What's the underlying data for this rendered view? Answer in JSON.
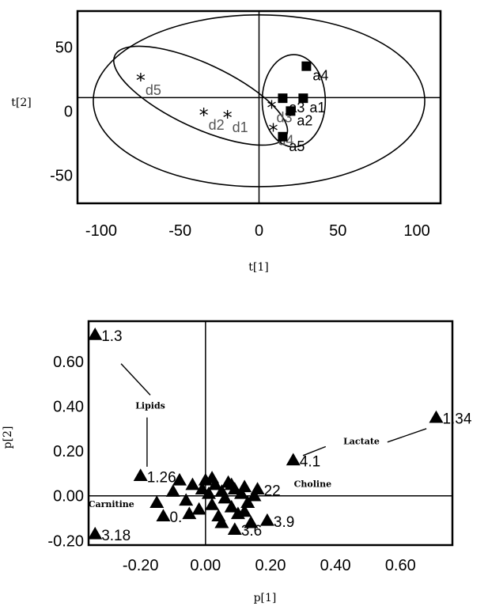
{
  "chart_data": [
    {
      "type": "scatter",
      "title": "",
      "xlabel": "t[1]",
      "ylabel": "t[2]",
      "xlim": [
        -115,
        115
      ],
      "ylim": [
        -72,
        78
      ],
      "xticks": [
        -100,
        -50,
        0,
        50,
        100
      ],
      "yticks": [
        50,
        0,
        -50
      ],
      "grid": false,
      "ellipses": [
        {
          "label": "",
          "cx": 0,
          "cy": 8,
          "rx": 105,
          "ry": 67
        },
        {
          "label": "",
          "cx": -37,
          "cy": 12,
          "rx": 60,
          "ry": 25,
          "angle": -25
        },
        {
          "label": "",
          "cx": 22,
          "cy": 8,
          "rx": 20,
          "ry": 36
        }
      ],
      "series": [
        {
          "marker": "asterisk",
          "points": [
            {
              "label": "d5",
              "x": -75,
              "y": 26
            },
            {
              "label": "d2",
              "x": -35,
              "y": -1
            },
            {
              "label": "d1",
              "x": -20,
              "y": -3
            },
            {
              "label": "d3",
              "x": 8,
              "y": 5
            },
            {
              "label": "d4",
              "x": 9,
              "y": -13
            }
          ]
        },
        {
          "marker": "square",
          "points": [
            {
              "label": "a4",
              "x": 30,
              "y": 35
            },
            {
              "label": "a1",
              "x": 28,
              "y": 10
            },
            {
              "label": "a3",
              "x": 15,
              "y": 10
            },
            {
              "label": "a2",
              "x": 20,
              "y": 0
            },
            {
              "label": "a5",
              "x": 15,
              "y": -20
            }
          ]
        }
      ]
    },
    {
      "type": "scatter",
      "title": "",
      "xlabel": "p[1]",
      "ylabel": "p[2]",
      "xlim": [
        -0.36,
        0.76
      ],
      "ylim": [
        -0.22,
        0.78
      ],
      "xticks": [
        "-0.20",
        "0.00",
        "0.20",
        "0.40",
        "0.60"
      ],
      "yticks": [
        "0.60",
        "0.40",
        "0.20",
        "0.00",
        "-0.20"
      ],
      "grid": false,
      "labeled_points": [
        {
          "label": "1.3",
          "x": -0.34,
          "y": 0.72
        },
        {
          "label": "1.34",
          "x": 0.71,
          "y": 0.35
        },
        {
          "label": "4.1",
          "x": 0.27,
          "y": 0.16
        },
        {
          "label": "1.26",
          "x": -0.2,
          "y": 0.09
        },
        {
          "label": "3.18",
          "x": -0.34,
          "y": -0.17
        },
        {
          "label": "3.9",
          "x": 0.19,
          "y": -0.11
        },
        {
          "label": "3.6",
          "x": 0.09,
          "y": -0.15
        },
        {
          "label": "22",
          "x": 0.16,
          "y": 0.03
        },
        {
          "label": "0.",
          "x": -0.13,
          "y": -0.09
        }
      ],
      "cluster_points": [
        {
          "x": -0.15,
          "y": -0.03
        },
        {
          "x": -0.1,
          "y": 0.02
        },
        {
          "x": -0.08,
          "y": 0.07
        },
        {
          "x": -0.06,
          "y": -0.02
        },
        {
          "x": -0.04,
          "y": 0.05
        },
        {
          "x": -0.02,
          "y": -0.06
        },
        {
          "x": 0.0,
          "y": 0.07
        },
        {
          "x": 0.01,
          "y": 0.01
        },
        {
          "x": 0.02,
          "y": -0.04
        },
        {
          "x": 0.03,
          "y": 0.05
        },
        {
          "x": 0.04,
          "y": -0.09
        },
        {
          "x": 0.05,
          "y": 0.02
        },
        {
          "x": 0.06,
          "y": -0.01
        },
        {
          "x": 0.07,
          "y": 0.06
        },
        {
          "x": 0.08,
          "y": -0.05
        },
        {
          "x": 0.09,
          "y": 0.03
        },
        {
          "x": 0.1,
          "y": -0.08
        },
        {
          "x": 0.11,
          "y": 0.01
        },
        {
          "x": 0.12,
          "y": 0.04
        },
        {
          "x": 0.13,
          "y": -0.03
        },
        {
          "x": 0.14,
          "y": -0.12
        },
        {
          "x": 0.15,
          "y": 0.0
        },
        {
          "x": 0.05,
          "y": -0.12
        },
        {
          "x": -0.01,
          "y": 0.03
        },
        {
          "x": -0.05,
          "y": -0.08
        },
        {
          "x": 0.02,
          "y": 0.08
        },
        {
          "x": 0.08,
          "y": 0.05
        },
        {
          "x": 0.12,
          "y": -0.07
        }
      ],
      "annotations": [
        {
          "text": "Lipids",
          "x": -0.17,
          "y": 0.39,
          "line": [
            [
              -0.26,
              0.59
            ],
            [
              -0.17,
              0.45
            ]
          ],
          "line2": [
            [
              -0.18,
              0.35
            ],
            [
              -0.18,
              0.13
            ]
          ]
        },
        {
          "text": "Lactate",
          "x": 0.48,
          "y": 0.23,
          "line": [
            [
              0.3,
              0.18
            ],
            [
              0.37,
              0.22
            ]
          ],
          "line2": [
            [
              0.56,
              0.24
            ],
            [
              0.68,
              0.3
            ]
          ]
        },
        {
          "text": "Choline",
          "x": 0.33,
          "y": 0.04
        },
        {
          "text": "Carnitine",
          "x": -0.29,
          "y": -0.05
        }
      ]
    }
  ]
}
